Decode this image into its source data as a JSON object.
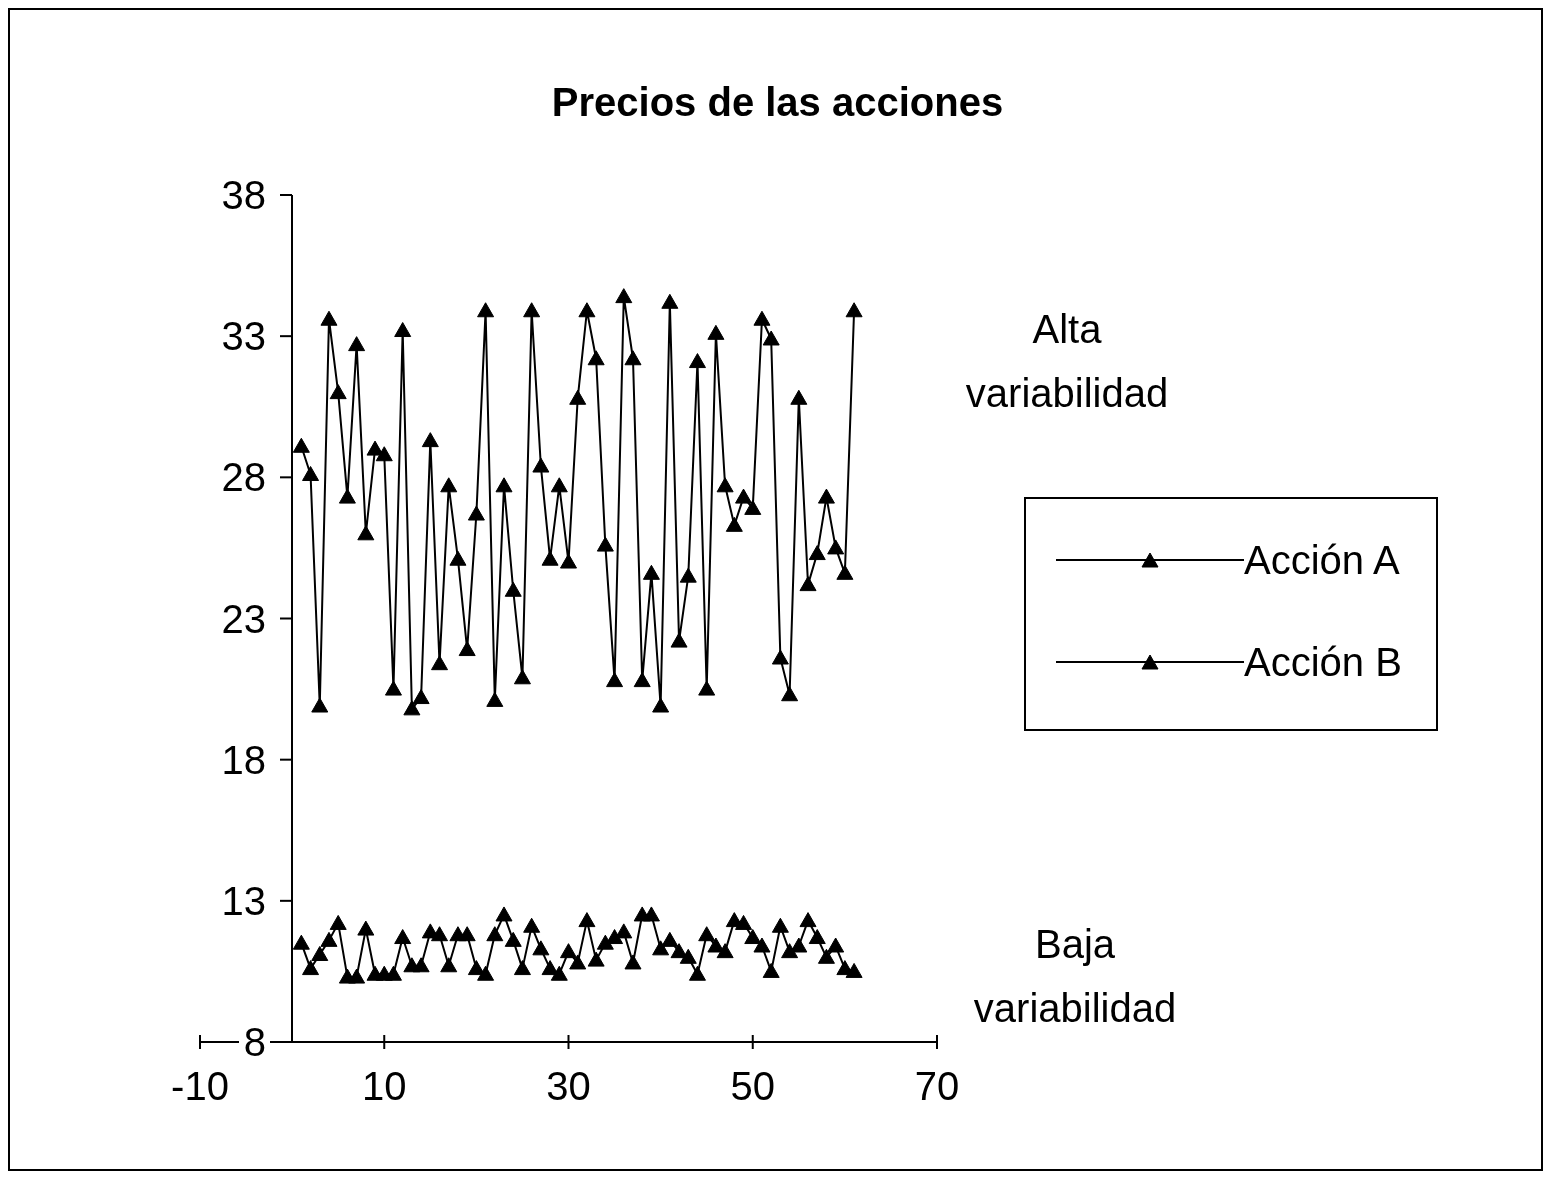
{
  "chart_data": {
    "type": "line",
    "title": "Precios de las acciones",
    "x": [
      1,
      2,
      3,
      4,
      5,
      6,
      7,
      8,
      9,
      10,
      11,
      12,
      13,
      14,
      15,
      16,
      17,
      18,
      19,
      20,
      21,
      22,
      23,
      24,
      25,
      26,
      27,
      28,
      29,
      30,
      31,
      32,
      33,
      34,
      35,
      36,
      37,
      38,
      39,
      40,
      41,
      42,
      43,
      44,
      45,
      46,
      47,
      48,
      49,
      50,
      51,
      52,
      53,
      54,
      55,
      56,
      57,
      58,
      59,
      60,
      61
    ],
    "series": [
      {
        "name": "Acción A",
        "color": "#000000",
        "values": [
          29.1,
          28.1,
          19.9,
          33.6,
          31,
          27.3,
          32.7,
          26.0,
          29.0,
          28.8,
          20.5,
          33.2,
          19.8,
          20.2,
          29.3,
          21.4,
          27.7,
          25.1,
          21.9,
          26.7,
          33.9,
          20.1,
          27.7,
          24.0,
          20.9,
          33.9,
          28.4,
          25.1,
          27.7,
          25.0,
          30.8,
          33.9,
          32.2,
          25.6,
          20.8,
          34.4,
          32.2,
          20.8,
          24.6,
          19.9,
          34.2,
          22.2,
          24.5,
          32.1,
          20.5,
          33.1,
          27.7,
          26.3,
          27.3,
          26.9,
          33.6,
          32.9,
          21.6,
          20.3,
          30.8,
          24.2,
          25.3,
          27.3,
          25.5,
          24.6,
          33.9
        ]
      },
      {
        "name": "Acción B",
        "color": "#000000",
        "values": [
          11.5,
          10.6,
          11.1,
          11.6,
          12.2,
          10.3,
          10.3,
          12.0,
          10.4,
          10.4,
          10.4,
          11.7,
          10.7,
          10.7,
          11.9,
          11.8,
          10.7,
          11.8,
          11.8,
          10.6,
          10.4,
          11.8,
          12.5,
          11.6,
          10.6,
          12.1,
          11.3,
          10.6,
          10.4,
          11.2,
          10.8,
          12.3,
          10.9,
          11.5,
          11.7,
          11.9,
          10.8,
          12.5,
          12.5,
          11.3,
          11.6,
          11.2,
          11.0,
          10.4,
          11.8,
          11.4,
          11.2,
          12.3,
          12.2,
          11.7,
          11.4,
          10.5,
          12.1,
          11.2,
          11.4,
          12.3,
          11.7,
          11.0,
          11.4,
          10.6,
          10.5
        ]
      }
    ],
    "xlim": [
      -10,
      70
    ],
    "xticks": [
      -10,
      10,
      30,
      50,
      70
    ],
    "ylim": [
      8,
      38
    ],
    "yticks": [
      8,
      13,
      18,
      23,
      28,
      33,
      38
    ],
    "annotations": [
      "Alta variabilidad",
      "Baja variabilidad"
    ],
    "legend": "right",
    "marker": "triangle",
    "line_style": "solid",
    "grid": false
  }
}
